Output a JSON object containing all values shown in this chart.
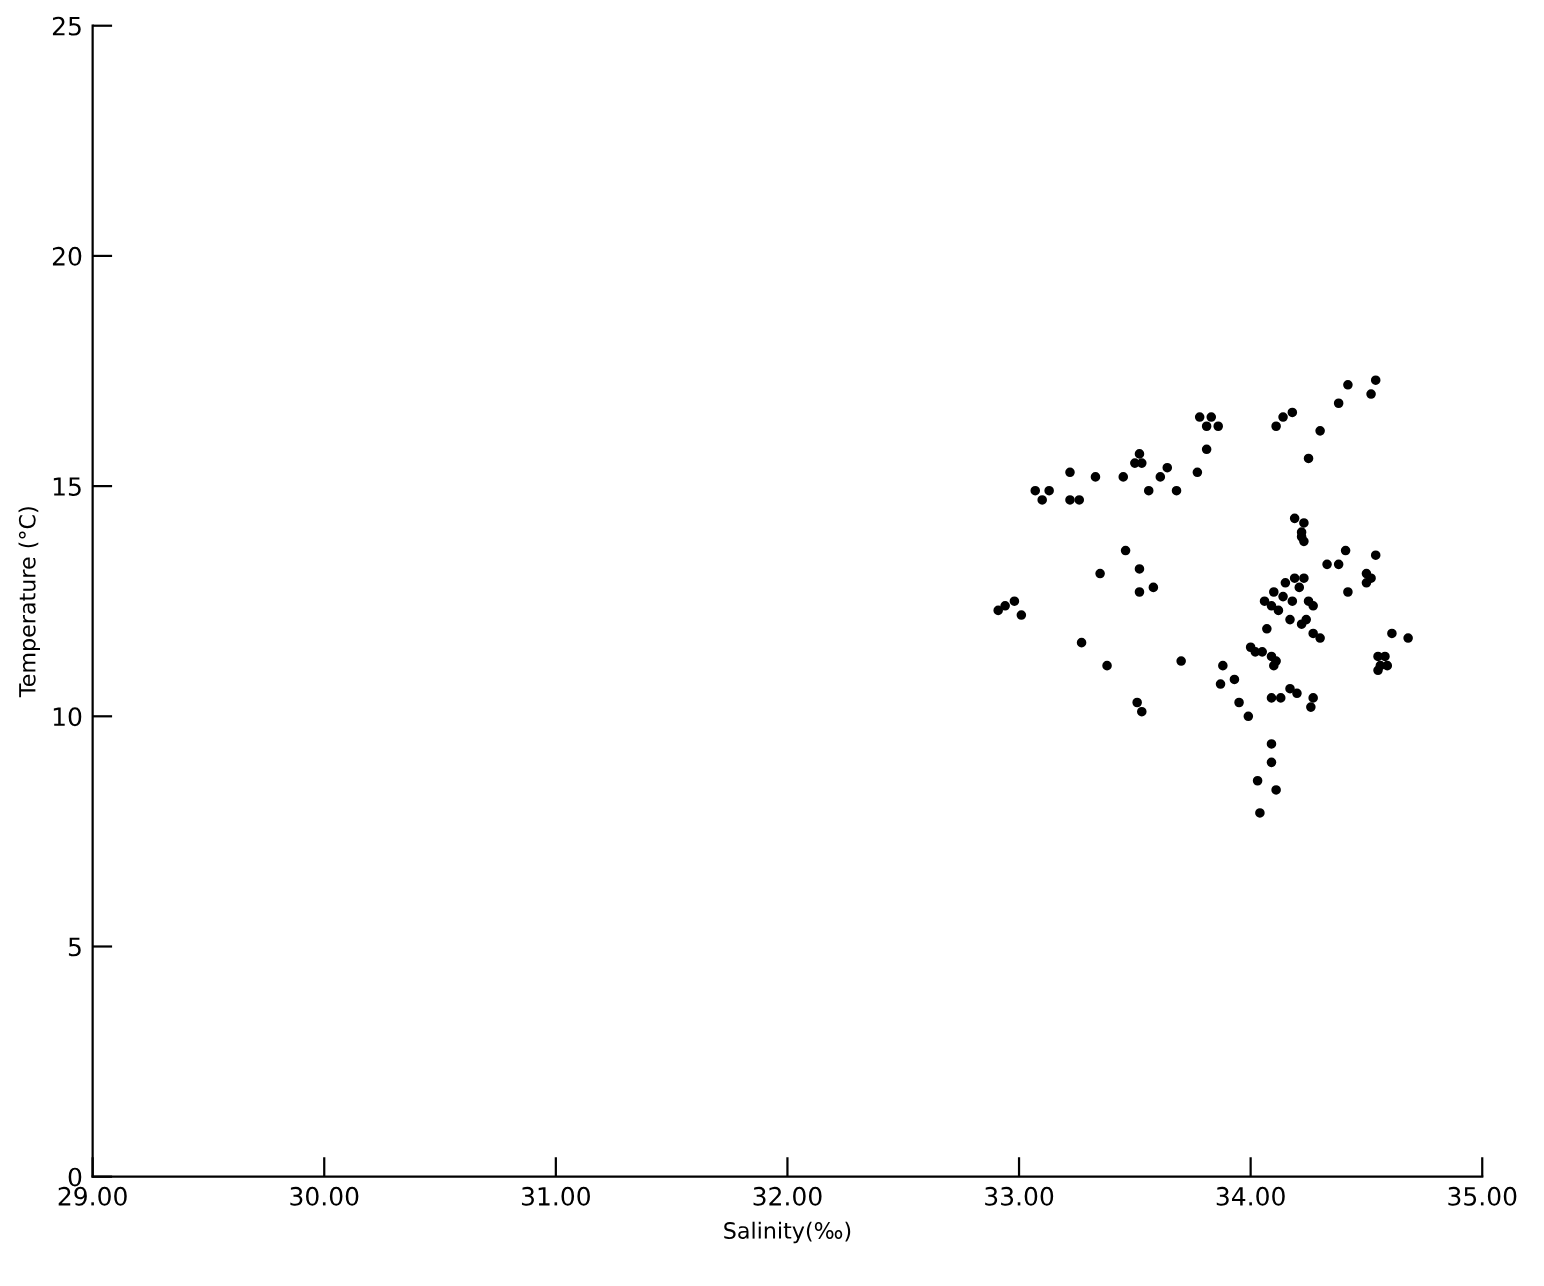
{
  "chart_data": {
    "type": "scatter",
    "xlabel": "Salinity(‰)",
    "ylabel": "Temperature (°C)",
    "xlim": [
      29,
      35
    ],
    "ylim": [
      0,
      25
    ],
    "xticks": [
      {
        "value": 29,
        "label": "29.00"
      },
      {
        "value": 30,
        "label": "30.00"
      },
      {
        "value": 31,
        "label": "31.00"
      },
      {
        "value": 32,
        "label": "32.00"
      },
      {
        "value": 33,
        "label": "33.00"
      },
      {
        "value": 34,
        "label": "34.00"
      },
      {
        "value": 35,
        "label": "35.00"
      }
    ],
    "yticks": [
      0,
      5,
      10,
      15,
      20,
      25
    ],
    "grid": false,
    "marker": "circle",
    "series": [
      {
        "color": "#000000",
        "x": [
          33.78,
          33.83,
          33.81,
          33.86,
          33.81,
          33.77,
          33.52,
          33.5,
          33.53,
          33.64,
          33.61,
          33.45,
          33.33,
          33.22,
          33.56,
          33.68,
          33.07,
          33.13,
          33.1,
          33.22,
          33.26,
          33.46,
          33.52,
          33.35,
          33.58,
          33.52,
          32.91,
          32.94,
          32.98,
          33.01,
          33.27,
          33.38,
          33.7,
          33.88,
          33.93,
          33.87,
          33.95,
          33.99,
          33.51,
          33.53,
          34.03,
          34.04,
          34.42,
          34.54,
          34.52,
          34.38,
          34.18,
          34.14,
          34.11,
          34.3,
          34.25,
          34.19,
          34.23,
          34.22,
          34.22,
          34.23,
          34.41,
          34.54,
          34.33,
          34.38,
          34.5,
          34.52,
          34.5,
          34.42,
          34.15,
          34.1,
          34.14,
          34.19,
          34.21,
          34.23,
          34.18,
          34.25,
          34.27,
          34.06,
          34.09,
          34.12,
          34.17,
          34.22,
          34.24,
          34.27,
          34.3,
          34.07,
          34.61,
          34.68,
          34.0,
          34.02,
          34.05,
          34.09,
          34.11,
          34.1,
          34.55,
          34.58,
          34.56,
          34.55,
          34.59,
          34.09,
          34.13,
          34.17,
          34.2,
          34.27,
          34.26,
          34.09,
          34.09,
          34.11
        ],
        "values": [
          16.5,
          16.5,
          16.3,
          16.3,
          15.8,
          15.3,
          15.7,
          15.5,
          15.5,
          15.4,
          15.2,
          15.2,
          15.2,
          15.3,
          14.9,
          14.9,
          14.9,
          14.9,
          14.7,
          14.7,
          14.7,
          13.6,
          13.2,
          13.1,
          12.8,
          12.7,
          12.3,
          12.4,
          12.5,
          12.2,
          11.6,
          11.1,
          11.2,
          11.1,
          10.8,
          10.7,
          10.3,
          10.0,
          10.3,
          10.1,
          8.6,
          7.9,
          17.2,
          17.3,
          17.0,
          16.8,
          16.6,
          16.5,
          16.3,
          16.2,
          15.6,
          14.3,
          14.2,
          14.0,
          13.9,
          13.8,
          13.6,
          13.5,
          13.3,
          13.3,
          13.1,
          13.0,
          12.9,
          12.7,
          12.9,
          12.7,
          12.6,
          13.0,
          12.8,
          13.0,
          12.5,
          12.5,
          12.4,
          12.5,
          12.4,
          12.3,
          12.1,
          12.0,
          12.1,
          11.8,
          11.7,
          11.9,
          11.8,
          11.7,
          11.5,
          11.4,
          11.4,
          11.3,
          11.2,
          11.1,
          11.3,
          11.3,
          11.1,
          11.0,
          11.1,
          10.4,
          10.4,
          10.6,
          10.5,
          10.4,
          10.2,
          9.4,
          9.0,
          8.4
        ]
      }
    ]
  }
}
